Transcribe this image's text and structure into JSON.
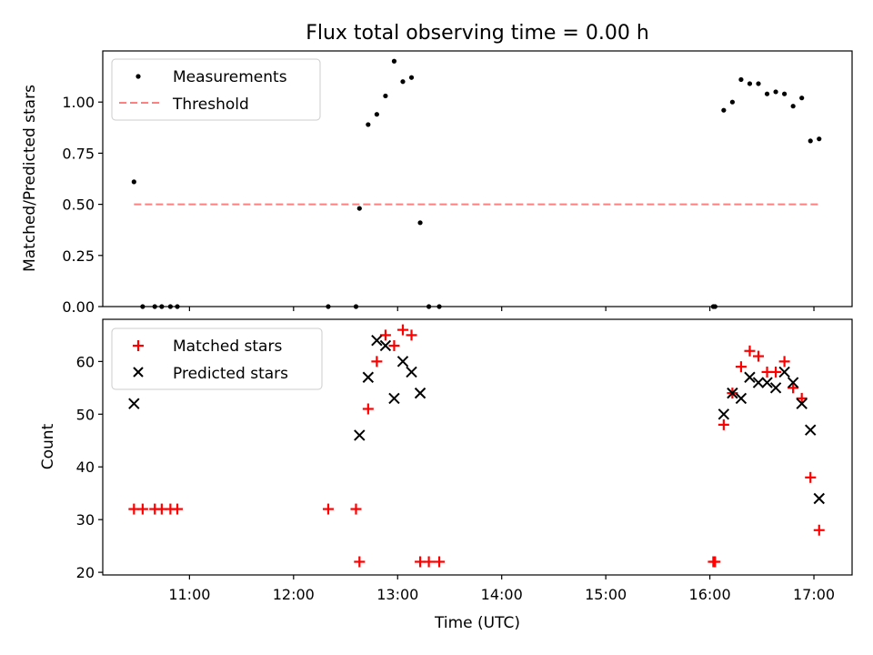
{
  "chart_data": [
    {
      "type": "scatter",
      "title": "Flux total observing time = 0.00 h",
      "xlabel": "",
      "ylabel": "Matched/Predicted stars",
      "ylim": [
        0.0,
        1.25
      ],
      "yticks": [
        "0.00",
        "0.25",
        "0.50",
        "0.75",
        "1.00"
      ],
      "xticks": [
        "11:00",
        "12:00",
        "13:00",
        "14:00",
        "15:00",
        "16:00",
        "17:00"
      ],
      "xlim": [
        "10:10",
        "17:22"
      ],
      "legend_placement": "top-left",
      "series": [
        {
          "name": "Measurements",
          "marker": "dot",
          "color": "#000000",
          "points": [
            [
              "10:28",
              0.61
            ],
            [
              "10:33",
              0.0
            ],
            [
              "10:40",
              0.0
            ],
            [
              "10:44",
              0.0
            ],
            [
              "10:49",
              0.0
            ],
            [
              "10:53",
              0.0
            ],
            [
              "12:20",
              0.0
            ],
            [
              "12:36",
              0.0
            ],
            [
              "12:38",
              0.48
            ],
            [
              "12:43",
              0.89
            ],
            [
              "12:48",
              0.94
            ],
            [
              "12:53",
              1.03
            ],
            [
              "12:58",
              1.2
            ],
            [
              "13:03",
              1.1
            ],
            [
              "13:08",
              1.12
            ],
            [
              "13:13",
              0.41
            ],
            [
              "13:18",
              0.0
            ],
            [
              "13:24",
              0.0
            ],
            [
              "16:02",
              0.0
            ],
            [
              "16:03",
              0.0
            ],
            [
              "16:08",
              0.96
            ],
            [
              "16:13",
              1.0
            ],
            [
              "16:18",
              1.11
            ],
            [
              "16:23",
              1.09
            ],
            [
              "16:28",
              1.09
            ],
            [
              "16:33",
              1.04
            ],
            [
              "16:38",
              1.05
            ],
            [
              "16:43",
              1.04
            ],
            [
              "16:48",
              0.98
            ],
            [
              "16:53",
              1.02
            ],
            [
              "16:58",
              0.81
            ],
            [
              "17:03",
              0.82
            ]
          ]
        },
        {
          "name": "Threshold",
          "marker": "dashed-line",
          "color": "#ff8080",
          "points": [
            [
              "10:28",
              0.5
            ],
            [
              "17:03",
              0.5
            ]
          ]
        }
      ]
    },
    {
      "type": "scatter",
      "title": "",
      "xlabel": "Time (UTC)",
      "ylabel": "Count",
      "ylim": [
        19.5,
        68
      ],
      "yticks": [
        "20",
        "30",
        "40",
        "50",
        "60"
      ],
      "xticks": [
        "11:00",
        "12:00",
        "13:00",
        "14:00",
        "15:00",
        "16:00",
        "17:00"
      ],
      "xlim": [
        "10:10",
        "17:22"
      ],
      "legend_placement": "top-left",
      "series": [
        {
          "name": "Matched stars",
          "marker": "plus",
          "color": "#ff0000",
          "points": [
            [
              "10:28",
              32
            ],
            [
              "10:33",
              32
            ],
            [
              "10:40",
              32
            ],
            [
              "10:44",
              32
            ],
            [
              "10:49",
              32
            ],
            [
              "10:53",
              32
            ],
            [
              "12:20",
              32
            ],
            [
              "12:36",
              32
            ],
            [
              "12:38",
              22
            ],
            [
              "12:43",
              51
            ],
            [
              "12:48",
              60
            ],
            [
              "12:53",
              65
            ],
            [
              "12:58",
              63
            ],
            [
              "13:03",
              66
            ],
            [
              "13:08",
              65
            ],
            [
              "13:13",
              22
            ],
            [
              "13:18",
              22
            ],
            [
              "13:24",
              22
            ],
            [
              "16:02",
              22
            ],
            [
              "16:03",
              22
            ],
            [
              "16:08",
              48
            ],
            [
              "16:13",
              54
            ],
            [
              "16:18",
              59
            ],
            [
              "16:23",
              62
            ],
            [
              "16:28",
              61
            ],
            [
              "16:33",
              58
            ],
            [
              "16:38",
              58
            ],
            [
              "16:43",
              60
            ],
            [
              "16:48",
              55
            ],
            [
              "16:53",
              53
            ],
            [
              "16:58",
              38
            ],
            [
              "17:03",
              28
            ]
          ]
        },
        {
          "name": "Predicted stars",
          "marker": "x",
          "color": "#000000",
          "points": [
            [
              "10:28",
              52
            ],
            [
              "12:38",
              46
            ],
            [
              "12:43",
              57
            ],
            [
              "12:48",
              64
            ],
            [
              "12:53",
              63
            ],
            [
              "12:58",
              53
            ],
            [
              "13:03",
              60
            ],
            [
              "13:08",
              58
            ],
            [
              "13:13",
              54
            ],
            [
              "16:08",
              50
            ],
            [
              "16:13",
              54
            ],
            [
              "16:18",
              53
            ],
            [
              "16:23",
              57
            ],
            [
              "16:28",
              56
            ],
            [
              "16:33",
              56
            ],
            [
              "16:38",
              55
            ],
            [
              "16:43",
              58
            ],
            [
              "16:48",
              56
            ],
            [
              "16:53",
              52
            ],
            [
              "16:58",
              47
            ],
            [
              "17:03",
              34
            ]
          ]
        }
      ]
    }
  ]
}
